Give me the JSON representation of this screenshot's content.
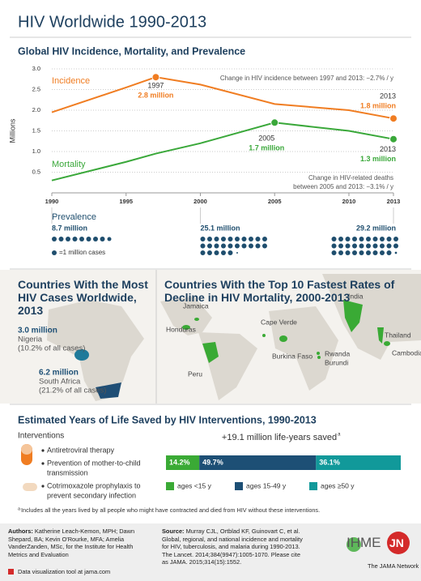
{
  "title": "HIV Worldwide 1990-2013",
  "chart_data": [
    {
      "type": "line",
      "title": "Global HIV Incidence, Mortality, and Prevalence",
      "y_label": "Millions",
      "x": [
        1990,
        1995,
        1997,
        2000,
        2005,
        2010,
        2013
      ],
      "series": [
        {
          "name": "Incidence",
          "color": "#f07d22",
          "values": [
            1.95,
            2.55,
            2.8,
            2.62,
            2.15,
            2.0,
            1.8
          ],
          "highlights": [
            {
              "year": "1997",
              "label": "2.8 million"
            },
            {
              "year": "2013",
              "label": "1.8 million"
            }
          ]
        },
        {
          "name": "Mortality",
          "color": "#3aa83a",
          "values": [
            0.3,
            0.75,
            0.95,
            1.2,
            1.7,
            1.5,
            1.3
          ],
          "highlights": [
            {
              "year": "2005",
              "label": "1.7 million"
            },
            {
              "year": "2013",
              "label": "1.3 million"
            }
          ]
        }
      ],
      "annotations": [
        [
          "Change in HIV incidence between 1997 and 2013: −2.7% / y"
        ],
        [
          "Change in HIV-related deaths",
          "between 2005 and 2013: −3.1% / y"
        ]
      ],
      "xlim": [
        1990,
        2013
      ],
      "xticks": [
        1990,
        1995,
        2000,
        2005,
        2010,
        2013
      ],
      "ylim": [
        0,
        3
      ],
      "yticks": [
        0.5,
        {
          "value": 1,
          "label": "1.0"
        },
        1.5,
        {
          "value": 2,
          "label": "2.0"
        },
        2.5,
        {
          "value": 3,
          "label": "3.0"
        }
      ],
      "grid": true,
      "prevalence": {
        "title": "Prevalence",
        "x": [
          1990,
          2000,
          2013
        ],
        "values": [
          8.7,
          25.1,
          29.2
        ],
        "value_labels": [
          "8.7 million",
          "25.1 million",
          "29.2 million"
        ],
        "legend": "=1 million cases",
        "color": "#1f4e6e"
      }
    },
    {
      "type": "stacked-bar",
      "title": "Estimated Years of Life Saved by HIV Interventions, 1990-2013",
      "total_label": "+19.1 million life-years saved",
      "note_marker": "a",
      "xlim": [
        0,
        100
      ],
      "series": [
        {
          "name": "ages <15 y",
          "color": "#3aaa35",
          "values": [
            14.2
          ],
          "value_labels": [
            "14.2%"
          ]
        },
        {
          "name": "ages 15-49 y",
          "color": "#1d4f75",
          "values": [
            49.7
          ],
          "value_labels": [
            "49.7%"
          ]
        },
        {
          "name": "ages ≥50 y",
          "color": "#11999a",
          "values": [
            36.1
          ],
          "value_labels": [
            "36.1%"
          ]
        }
      ]
    }
  ],
  "maps": {
    "left": {
      "title": "Countries With the Most HIV Cases Worldwide, 2013",
      "countries": [
        {
          "value_label": "3.0 million",
          "name": "Nigeria",
          "share": "(10.2% of all cases)"
        },
        {
          "value_label": "6.2 million",
          "name": "South Africa",
          "share": "(21.2% of all cases)"
        }
      ]
    },
    "right": {
      "title": "Countries With the Top 10 Fastest Rates of Decline in HIV Mortality, 2000-2013",
      "countries": [
        "Jamaica",
        "Honduras",
        "Cape Verde",
        "Burkina Faso",
        "Peru",
        "India",
        "Rwanda",
        "Burundi",
        "Thailand",
        "Cambodia"
      ]
    }
  },
  "interventions": {
    "title": "Interventions",
    "items": [
      [
        "Antiretroviral therapy"
      ],
      [
        "Prevention of mother-to-child",
        "transmission"
      ],
      [
        "Cotrimoxazole prophylaxis to",
        "prevent secondary infection"
      ]
    ]
  },
  "footnote": {
    "marker": "a",
    "text": "Includes all the years lived by all people who might have contracted and died from HIV without these interventions."
  },
  "footer": {
    "authors_label": "Authors:",
    "authors": "Katherine Leach-Kemon, MPH; Dawn Shepard, BA; Kevin O'Rourke, MFA; Amelia VanderZanden, MSc, for the Institute for Health Metrics and Evaluation",
    "tool_link": "Data visualization tool at jama.com",
    "source_label": "Source:",
    "source": "Murray CJL, Ortblad KF, Guinovart C, et al. Global, regional, and national incidence and mortality for HIV, tuberculosis, and malaria during 1990-2013. The Lancet. 2014;384(9947):1005-1070. Please cite as JAMA. 2015;314(15):1552.",
    "logo_ihme": "IHME",
    "logo_jn": "JN",
    "jama_network": "The JAMA Network"
  }
}
